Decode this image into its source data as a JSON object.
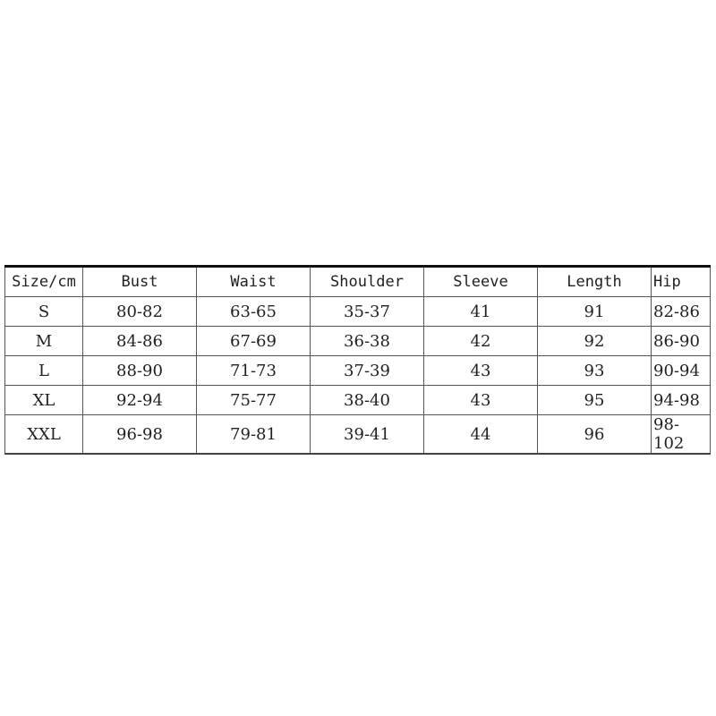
{
  "size_chart": {
    "headers": [
      "Size/cm",
      "Bust",
      "Waist",
      "Shoulder",
      "Sleeve",
      "Length",
      "Hip"
    ],
    "rows": [
      [
        "S",
        "80-82",
        "63-65",
        "35-37",
        "41",
        "91",
        "82-86"
      ],
      [
        "M",
        "84-86",
        "67-69",
        "36-38",
        "42",
        "92",
        "86-90"
      ],
      [
        "L",
        "88-90",
        "71-73",
        "37-39",
        "43",
        "93",
        "90-94"
      ],
      [
        "XL",
        "92-94",
        "75-77",
        "38-40",
        "43",
        "95",
        "94-98"
      ],
      [
        "XXL",
        "96-98",
        "79-81",
        "39-41",
        "44",
        "96",
        "98-102"
      ]
    ]
  }
}
